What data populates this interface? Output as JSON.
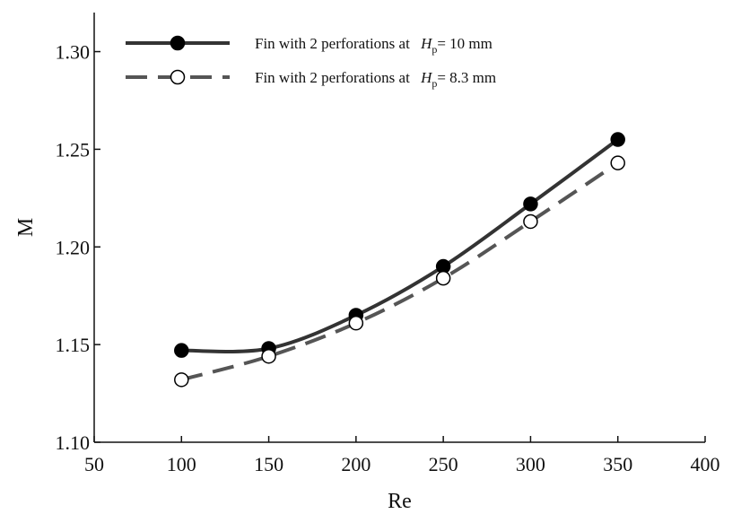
{
  "chart_data": {
    "type": "line",
    "xlabel": "Re",
    "ylabel": "M",
    "xlim": [
      50,
      400
    ],
    "ylim": [
      1.1,
      1.32
    ],
    "xticks": [
      "50",
      "100",
      "150",
      "200",
      "250",
      "300",
      "350",
      "400"
    ],
    "yticks": [
      "1.10",
      "1.15",
      "1.20",
      "1.25",
      "1.30"
    ],
    "x": [
      100,
      150,
      200,
      250,
      300,
      350
    ],
    "series": [
      {
        "legend_prefix": "Fin with 2 perforations at",
        "legend_var": "H",
        "legend_sub": "p",
        "legend_suffix": "= 10 mm",
        "values": [
          1.147,
          1.148,
          1.165,
          1.19,
          1.222,
          1.255
        ],
        "line_style": "solid",
        "marker": "filled-circle",
        "color": "#333333"
      },
      {
        "legend_prefix": "Fin with 2 perforations at",
        "legend_var": "H",
        "legend_sub": "p",
        "legend_suffix": "= 8.3 mm",
        "values": [
          1.132,
          1.144,
          1.161,
          1.184,
          1.213,
          1.243
        ],
        "line_style": "dashed",
        "marker": "open-circle",
        "color": "#555555"
      }
    ],
    "grid": false,
    "legend_position": "top-left"
  }
}
